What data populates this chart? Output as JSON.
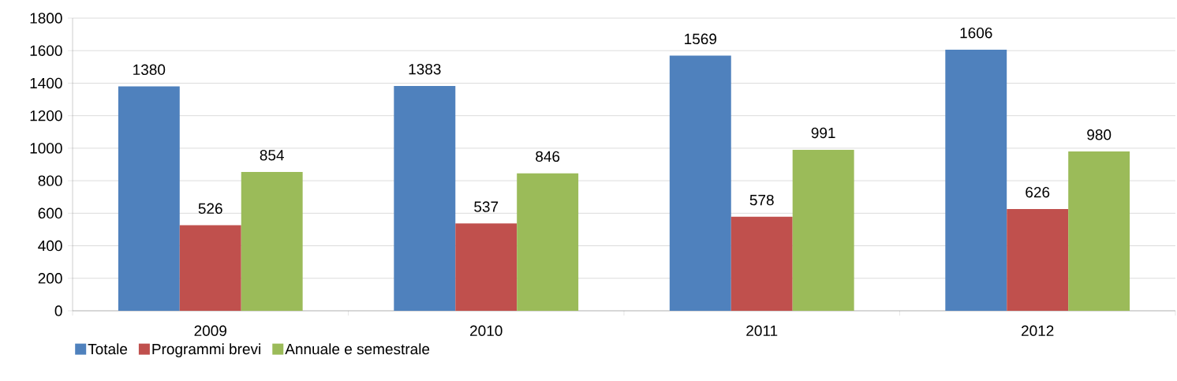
{
  "chart_data": {
    "type": "bar",
    "categories": [
      "2009",
      "2010",
      "2011",
      "2012"
    ],
    "series": [
      {
        "name": "Totale",
        "color": "#4f81bd",
        "values": [
          1380,
          1383,
          1569,
          1606
        ]
      },
      {
        "name": "Programmi brevi",
        "color": "#c0504d",
        "values": [
          526,
          537,
          578,
          626
        ]
      },
      {
        "name": "Annuale e semestrale",
        "color": "#9bbb59",
        "values": [
          854,
          846,
          991,
          980
        ]
      }
    ],
    "ylim": [
      0,
      1800
    ],
    "yticks": [
      0,
      200,
      400,
      600,
      800,
      1000,
      1200,
      1400,
      1600,
      1800
    ],
    "grid": "y",
    "legend": "bottom",
    "data_labels": true
  }
}
